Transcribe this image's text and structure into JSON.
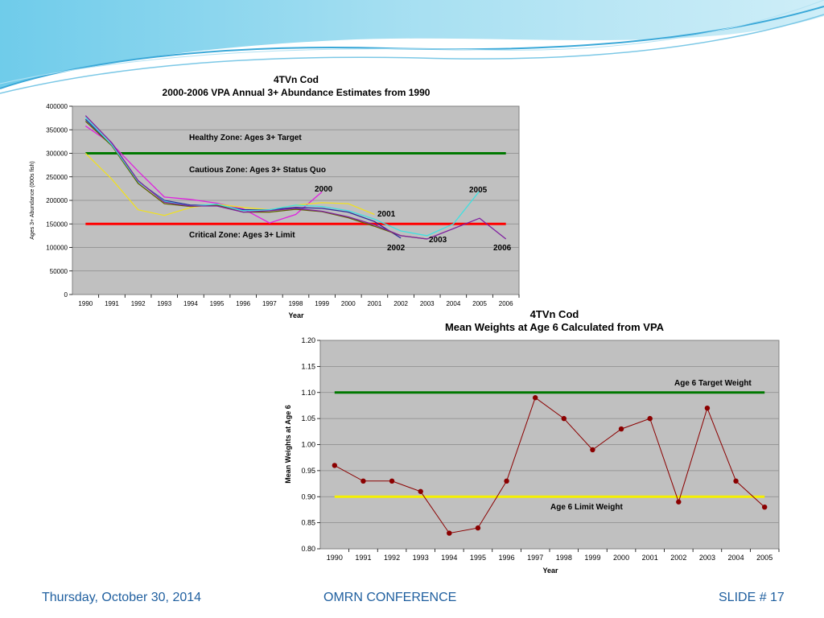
{
  "slide": {
    "footer_left": "Thursday, October 30, 2014",
    "footer_center": "OMRN CONFERENCE",
    "footer_right": "SLIDE # 17",
    "footer_color": "#1f5f9f"
  },
  "chart_data": [
    {
      "type": "line",
      "title": "4TVn Cod",
      "subtitle": "2000-2006 VPA Annual 3+ Abundance Estimates from 1990",
      "xlabel": "Year",
      "ylabel": "Ages 3+ Abundance (000s fish)",
      "ylim": [
        0,
        400000
      ],
      "yticks": [
        0,
        50000,
        100000,
        150000,
        200000,
        250000,
        300000,
        350000,
        400000
      ],
      "categories": [
        "1990",
        "1991",
        "1992",
        "1993",
        "1994",
        "1995",
        "1996",
        "1997",
        "1998",
        "1999",
        "2000",
        "2001",
        "2002",
        "2003",
        "2004",
        "2005",
        "2006"
      ],
      "grid": true,
      "series": [
        {
          "name": "2000",
          "color": "#e020e0",
          "values": [
            358000,
            320000,
            262000,
            207000,
            202000,
            194000,
            182000,
            152000,
            170000,
            218000,
            null,
            null,
            null,
            null,
            null,
            null,
            null
          ]
        },
        {
          "name": "2001",
          "color": "#f0e020",
          "values": [
            300000,
            245000,
            180000,
            168000,
            185000,
            192000,
            185000,
            180000,
            190000,
            195000,
            193000,
            170000,
            null,
            null,
            null,
            null,
            null
          ]
        },
        {
          "name": "2002",
          "color": "#2a2a9a",
          "values": [
            372000,
            318000,
            240000,
            200000,
            190000,
            190000,
            180000,
            180000,
            185000,
            183000,
            175000,
            155000,
            120000,
            null,
            null,
            null,
            null
          ]
        },
        {
          "name": "2003",
          "color": "#606000",
          "values": [
            368000,
            316000,
            236000,
            193000,
            187000,
            190000,
            175000,
            175000,
            181000,
            176000,
            163000,
            145000,
            125000,
            118000,
            null,
            null,
            null
          ]
        },
        {
          "name": "2005",
          "color": "#40e0e0",
          "values": [
            376000,
            318000,
            240000,
            198000,
            188000,
            192000,
            178000,
            180000,
            190000,
            187000,
            178000,
            160000,
            135000,
            125000,
            150000,
            220000,
            null
          ]
        },
        {
          "name": "2006",
          "color": "#8020a0",
          "values": [
            380000,
            322000,
            242000,
            196000,
            188000,
            188000,
            175000,
            178000,
            183000,
            177000,
            165000,
            148000,
            125000,
            118000,
            140000,
            162000,
            118000
          ]
        }
      ],
      "reference_lines": [
        {
          "label": "Healthy Zone:  Ages 3+ Target",
          "value": 300000,
          "color": "#007800"
        },
        {
          "label": "Critical Zone:  Ages 3+ Limit",
          "value": 150000,
          "color": "#ff0000"
        }
      ],
      "zone_labels": [
        "Healthy Zone:  Ages 3+ Target",
        "Cautious Zone:  Ages 3+ Status Quo",
        "Critical Zone:  Ages 3+ Limit"
      ],
      "series_labels": [
        "2000",
        "2001",
        "2002",
        "2003",
        "2005",
        "2006"
      ]
    },
    {
      "type": "line",
      "title": "4TVn Cod",
      "subtitle": "Mean Weights at Age 6 Calculated from VPA",
      "xlabel": "Year",
      "ylabel": "Mean Weights at Age 6",
      "ylim": [
        0.8,
        1.2
      ],
      "yticks": [
        "0.80",
        "0.85",
        "0.90",
        "0.95",
        "1.00",
        "1.05",
        "1.10",
        "1.15",
        "1.20"
      ],
      "categories": [
        "1990",
        "1991",
        "1992",
        "1993",
        "1994",
        "1995",
        "1996",
        "1997",
        "1998",
        "1999",
        "2000",
        "2001",
        "2002",
        "2003",
        "2004",
        "2005"
      ],
      "grid": true,
      "series": [
        {
          "color": "#8b0000",
          "values": [
            0.96,
            0.93,
            0.93,
            0.91,
            0.83,
            0.84,
            0.93,
            1.09,
            1.05,
            0.99,
            1.03,
            1.05,
            0.89,
            1.07,
            0.93,
            0.88
          ]
        }
      ],
      "reference_lines": [
        {
          "label": "Age 6 Target Weight",
          "value": 1.1,
          "color": "#007800"
        },
        {
          "label": "Age 6 Limit Weight",
          "value": 0.9,
          "color": "#f5f000"
        }
      ]
    }
  ]
}
